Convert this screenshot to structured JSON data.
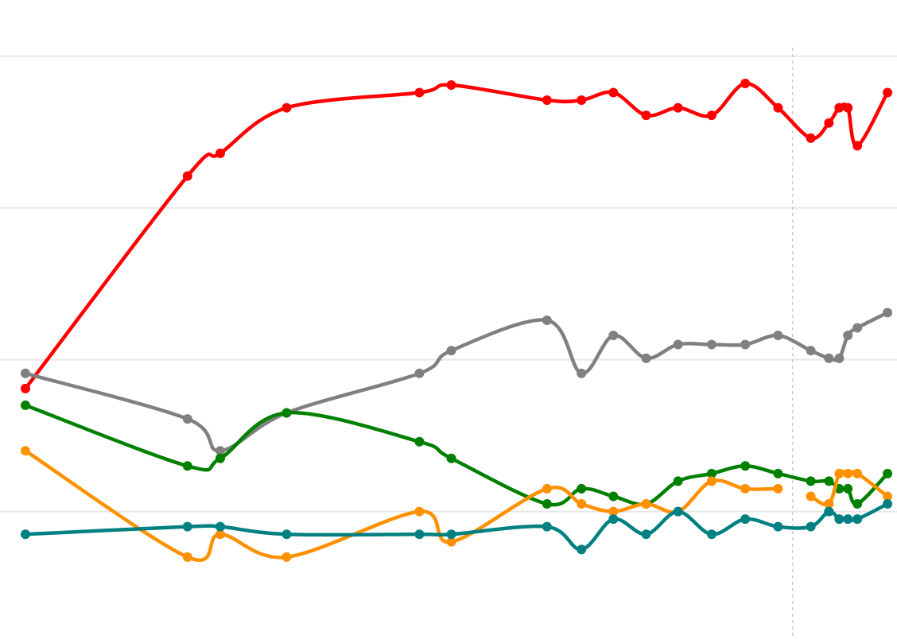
{
  "chart_data": {
    "type": "line",
    "title": "",
    "xlabel": "",
    "ylabel": "",
    "xlim": [
      -2.95,
      101.1
    ],
    "ylim": [
      1.6,
      43.7
    ],
    "grid": true,
    "gridlines_y": [
      10,
      20,
      30,
      40
    ],
    "reference_line_x": 89.0,
    "legend": "none",
    "x": [
      0,
      18.8,
      22.6,
      30.3,
      45.7,
      49.4,
      60.5,
      64.5,
      68.2,
      72.0,
      75.7,
      79.6,
      83.5,
      87.3,
      91.1,
      93.2,
      94.4,
      95.4,
      96.5,
      100
    ],
    "series": [
      {
        "color": "#ff0000",
        "values": [
          18.1,
          32.1,
          33.6,
          36.6,
          37.6,
          38.1,
          37.1,
          37.1,
          37.6,
          36.1,
          36.6,
          36.1,
          38.2,
          36.6,
          34.6,
          35.6,
          36.6,
          36.6,
          34.1,
          37.6
        ]
      },
      {
        "color": "#808080",
        "values": [
          19.1,
          16.1,
          14.0,
          16.5,
          19.1,
          20.6,
          22.6,
          19.1,
          21.6,
          20.1,
          21.0,
          21.0,
          21.0,
          21.6,
          20.6,
          20.1,
          20.1,
          21.6,
          22.1,
          23.1
        ]
      },
      {
        "color": "#008000",
        "values": [
          17.0,
          13.0,
          13.5,
          16.5,
          14.6,
          13.5,
          10.5,
          11.5,
          11.0,
          10.5,
          12.0,
          12.5,
          13.0,
          12.5,
          12.0,
          12.0,
          11.5,
          11.5,
          10.5,
          12.5
        ]
      },
      {
        "color": "#ff9100",
        "values": [
          14.0,
          7.0,
          8.5,
          7.0,
          10.0,
          8.0,
          11.5,
          10.5,
          10.0,
          10.5,
          10.0,
          12.0,
          11.5,
          11.5,
          11.0,
          10.5,
          12.5,
          12.5,
          12.5,
          11.0
        ],
        "gap_after_index": 13
      },
      {
        "color": "#008080",
        "values": [
          8.5,
          9.0,
          9.0,
          8.5,
          8.5,
          8.5,
          9.0,
          7.5,
          9.5,
          8.5,
          10.0,
          8.5,
          9.5,
          9.0,
          9.0,
          10.0,
          9.5,
          9.5,
          9.5,
          10.5
        ]
      }
    ]
  }
}
